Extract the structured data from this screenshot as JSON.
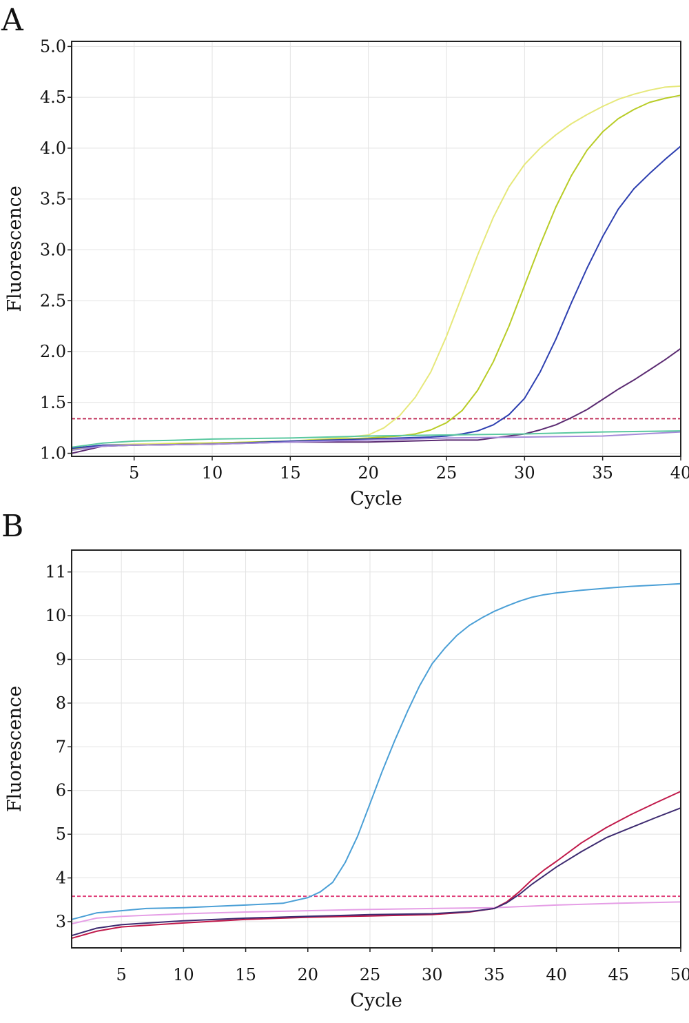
{
  "chart_data": [
    {
      "panel": "A",
      "type": "line",
      "xlabel": "Cycle",
      "ylabel": "Fluorescence",
      "xlim": [
        1,
        40
      ],
      "ylim": [
        0.97,
        5.05
      ],
      "xticks": [
        5,
        10,
        15,
        20,
        25,
        30,
        35,
        40
      ],
      "yticks": [
        1.0,
        1.5,
        2.0,
        2.5,
        3.0,
        3.5,
        4.0,
        4.5,
        5.0
      ],
      "ytick_labels": [
        "1.0",
        "1.5",
        "2.0",
        "2.5",
        "3.0",
        "3.5",
        "4.0",
        "4.5",
        "5.0"
      ],
      "grid": true,
      "threshold": {
        "y": 1.34,
        "color": "#c0305a"
      },
      "series": [
        {
          "color": "#e6e87a",
          "x": [
            1,
            3,
            5,
            8,
            10,
            15,
            18,
            20,
            21,
            22,
            23,
            24,
            25,
            26,
            27,
            28,
            29,
            30,
            31,
            32,
            33,
            34,
            35,
            36,
            37,
            38,
            39,
            40
          ],
          "y": [
            1.05,
            1.08,
            1.09,
            1.1,
            1.1,
            1.12,
            1.15,
            1.18,
            1.25,
            1.37,
            1.55,
            1.8,
            2.15,
            2.55,
            2.95,
            3.32,
            3.62,
            3.84,
            4.0,
            4.13,
            4.24,
            4.33,
            4.41,
            4.48,
            4.53,
            4.57,
            4.6,
            4.61
          ]
        },
        {
          "color": "#b8cc26",
          "x": [
            1,
            3,
            5,
            10,
            15,
            20,
            22,
            23,
            24,
            25,
            26,
            27,
            28,
            29,
            30,
            31,
            32,
            33,
            34,
            35,
            36,
            37,
            38,
            39,
            40
          ],
          "y": [
            1.04,
            1.07,
            1.08,
            1.1,
            1.12,
            1.15,
            1.17,
            1.19,
            1.23,
            1.3,
            1.42,
            1.62,
            1.9,
            2.25,
            2.65,
            3.05,
            3.42,
            3.73,
            3.98,
            4.16,
            4.29,
            4.38,
            4.45,
            4.49,
            4.52
          ]
        },
        {
          "color": "#2d3fb0",
          "x": [
            1,
            3,
            5,
            10,
            15,
            20,
            24,
            25,
            26,
            27,
            28,
            29,
            30,
            31,
            32,
            33,
            34,
            35,
            36,
            37,
            38,
            39,
            40
          ],
          "y": [
            1.05,
            1.08,
            1.08,
            1.09,
            1.12,
            1.14,
            1.16,
            1.17,
            1.19,
            1.22,
            1.28,
            1.38,
            1.54,
            1.8,
            2.12,
            2.48,
            2.82,
            3.13,
            3.4,
            3.6,
            3.75,
            3.89,
            4.02
          ]
        },
        {
          "color": "#5b2b72",
          "x": [
            1,
            3,
            5,
            10,
            15,
            20,
            25,
            27,
            28,
            29,
            30,
            31,
            32,
            33,
            34,
            35,
            36,
            37,
            38,
            39,
            40
          ],
          "y": [
            1.0,
            1.07,
            1.08,
            1.09,
            1.11,
            1.11,
            1.13,
            1.13,
            1.15,
            1.17,
            1.19,
            1.23,
            1.28,
            1.35,
            1.43,
            1.53,
            1.63,
            1.72,
            1.82,
            1.92,
            2.03
          ]
        },
        {
          "color": "#5ac8a0",
          "x": [
            1,
            3,
            5,
            8,
            10,
            15,
            20,
            25,
            30,
            35,
            40
          ],
          "y": [
            1.06,
            1.1,
            1.12,
            1.13,
            1.14,
            1.15,
            1.17,
            1.18,
            1.19,
            1.21,
            1.22
          ]
        },
        {
          "color": "#a48ad8",
          "x": [
            1,
            3,
            5,
            10,
            15,
            20,
            25,
            30,
            35,
            40
          ],
          "y": [
            1.03,
            1.07,
            1.08,
            1.09,
            1.11,
            1.13,
            1.15,
            1.16,
            1.17,
            1.21
          ]
        }
      ]
    },
    {
      "panel": "B",
      "type": "line",
      "xlabel": "Cycle",
      "ylabel": "Fluorescence",
      "xlim": [
        1,
        50
      ],
      "ylim": [
        2.4,
        11.5
      ],
      "xticks": [
        5,
        10,
        15,
        20,
        25,
        30,
        35,
        40,
        45,
        50
      ],
      "yticks": [
        3,
        4,
        5,
        6,
        7,
        8,
        9,
        10,
        11
      ],
      "ytick_labels": [
        "3",
        "4",
        "5",
        "6",
        "7",
        "8",
        "9",
        "10",
        "11"
      ],
      "grid": true,
      "threshold": {
        "y": 3.58,
        "color": "#e0407a"
      },
      "series": [
        {
          "color": "#4a9fd6",
          "x": [
            1,
            3,
            5,
            7,
            10,
            15,
            18,
            20,
            21,
            22,
            23,
            24,
            25,
            26,
            27,
            28,
            29,
            30,
            31,
            32,
            33,
            34,
            35,
            36,
            37,
            38,
            39,
            40,
            42,
            44,
            46,
            48,
            50
          ],
          "y": [
            3.05,
            3.2,
            3.25,
            3.3,
            3.32,
            3.38,
            3.42,
            3.55,
            3.68,
            3.9,
            4.35,
            4.95,
            5.7,
            6.45,
            7.15,
            7.8,
            8.4,
            8.9,
            9.25,
            9.55,
            9.78,
            9.95,
            10.1,
            10.22,
            10.33,
            10.42,
            10.48,
            10.52,
            10.58,
            10.63,
            10.67,
            10.7,
            10.73
          ]
        },
        {
          "color": "#e59ee6",
          "x": [
            1,
            3,
            5,
            10,
            15,
            20,
            25,
            30,
            35,
            40,
            45,
            50
          ],
          "y": [
            2.95,
            3.08,
            3.12,
            3.18,
            3.22,
            3.25,
            3.28,
            3.3,
            3.32,
            3.38,
            3.42,
            3.45
          ]
        },
        {
          "color": "#c0194a",
          "x": [
            1,
            3,
            5,
            10,
            15,
            20,
            25,
            30,
            33,
            35,
            36,
            37,
            38,
            39,
            40,
            42,
            44,
            46,
            48,
            50
          ],
          "y": [
            2.62,
            2.78,
            2.88,
            2.97,
            3.05,
            3.1,
            3.13,
            3.16,
            3.22,
            3.3,
            3.45,
            3.68,
            3.95,
            4.18,
            4.38,
            4.8,
            5.15,
            5.45,
            5.72,
            5.98
          ]
        },
        {
          "color": "#3d2a70",
          "x": [
            1,
            3,
            5,
            10,
            15,
            20,
            25,
            30,
            33,
            35,
            36,
            37,
            38,
            39,
            40,
            42,
            44,
            46,
            48,
            50
          ],
          "y": [
            2.68,
            2.85,
            2.93,
            3.02,
            3.08,
            3.12,
            3.16,
            3.18,
            3.23,
            3.3,
            3.43,
            3.62,
            3.85,
            4.05,
            4.25,
            4.6,
            4.92,
            5.15,
            5.38,
            5.6
          ]
        }
      ]
    }
  ]
}
